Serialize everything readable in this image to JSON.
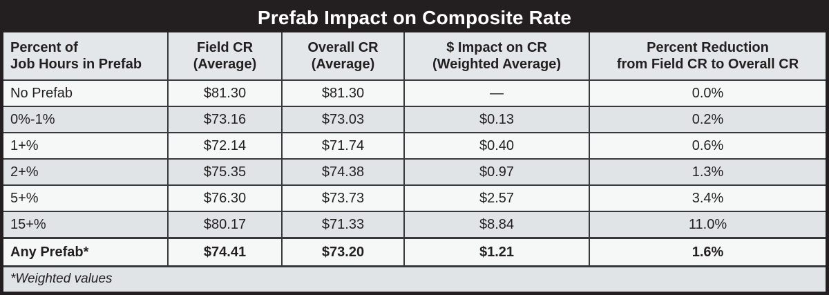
{
  "title": "Prefab Impact on Composite Rate",
  "columns": [
    {
      "line1": "Percent of",
      "line2": "Job Hours in Prefab"
    },
    {
      "line1": "Field CR",
      "line2": "(Average)"
    },
    {
      "line1": "Overall CR",
      "line2": "(Average)"
    },
    {
      "line1": "$ Impact on CR",
      "line2": "(Weighted Average)"
    },
    {
      "line1": "Percent Reduction",
      "line2": "from Field CR to Overall CR"
    }
  ],
  "rows": [
    {
      "label": "No Prefab",
      "field_cr": "$81.30",
      "overall_cr": "$81.30",
      "impact": "—",
      "reduction": "0.0%"
    },
    {
      "label": "0%-1%",
      "field_cr": "$73.16",
      "overall_cr": "$73.03",
      "impact": "$0.13",
      "reduction": "0.2%"
    },
    {
      "label": "1+%",
      "field_cr": "$72.14",
      "overall_cr": "$71.74",
      "impact": "$0.40",
      "reduction": "0.6%"
    },
    {
      "label": "2+%",
      "field_cr": "$75.35",
      "overall_cr": "$74.38",
      "impact": "$0.97",
      "reduction": "1.3%"
    },
    {
      "label": "5+%",
      "field_cr": "$76.30",
      "overall_cr": "$73.73",
      "impact": "$2.57",
      "reduction": "3.4%"
    },
    {
      "label": "15+%",
      "field_cr": "$80.17",
      "overall_cr": "$71.33",
      "impact": "$8.84",
      "reduction": "11.0%"
    }
  ],
  "summary_row": {
    "label": "Any Prefab*",
    "field_cr": "$74.41",
    "overall_cr": "$73.20",
    "impact": "$1.21",
    "reduction": "1.6%"
  },
  "footnote": "*Weighted values",
  "colors": {
    "title_bar_bg": "#231f20",
    "title_text": "#ffffff",
    "header_bg": "#e3e7e9",
    "row_light_bg": "#f6f8f8",
    "row_shaded_bg": "#e0e4e6",
    "footnote_bg": "#e0e4e6",
    "border": "#36393c",
    "outer_border": "#231f20",
    "text": "#231f20"
  },
  "chart_data": {
    "type": "table",
    "title": "Prefab Impact on Composite Rate",
    "columns": [
      "Percent of Job Hours in Prefab",
      "Field CR (Average)",
      "Overall CR (Average)",
      "$ Impact on CR (Weighted Average)",
      "Percent Reduction from Field CR to Overall CR"
    ],
    "rows": [
      [
        "No Prefab",
        81.3,
        81.3,
        null,
        0.0
      ],
      [
        "0%-1%",
        73.16,
        73.03,
        0.13,
        0.2
      ],
      [
        "1+%",
        72.14,
        71.74,
        0.4,
        0.6
      ],
      [
        "2+%",
        75.35,
        74.38,
        0.97,
        1.3
      ],
      [
        "5+%",
        76.3,
        73.73,
        2.57,
        3.4
      ],
      [
        "15+%",
        80.17,
        71.33,
        8.84,
        11.0
      ],
      [
        "Any Prefab*",
        74.41,
        73.2,
        1.21,
        1.6
      ]
    ],
    "footnote": "*Weighted values"
  }
}
